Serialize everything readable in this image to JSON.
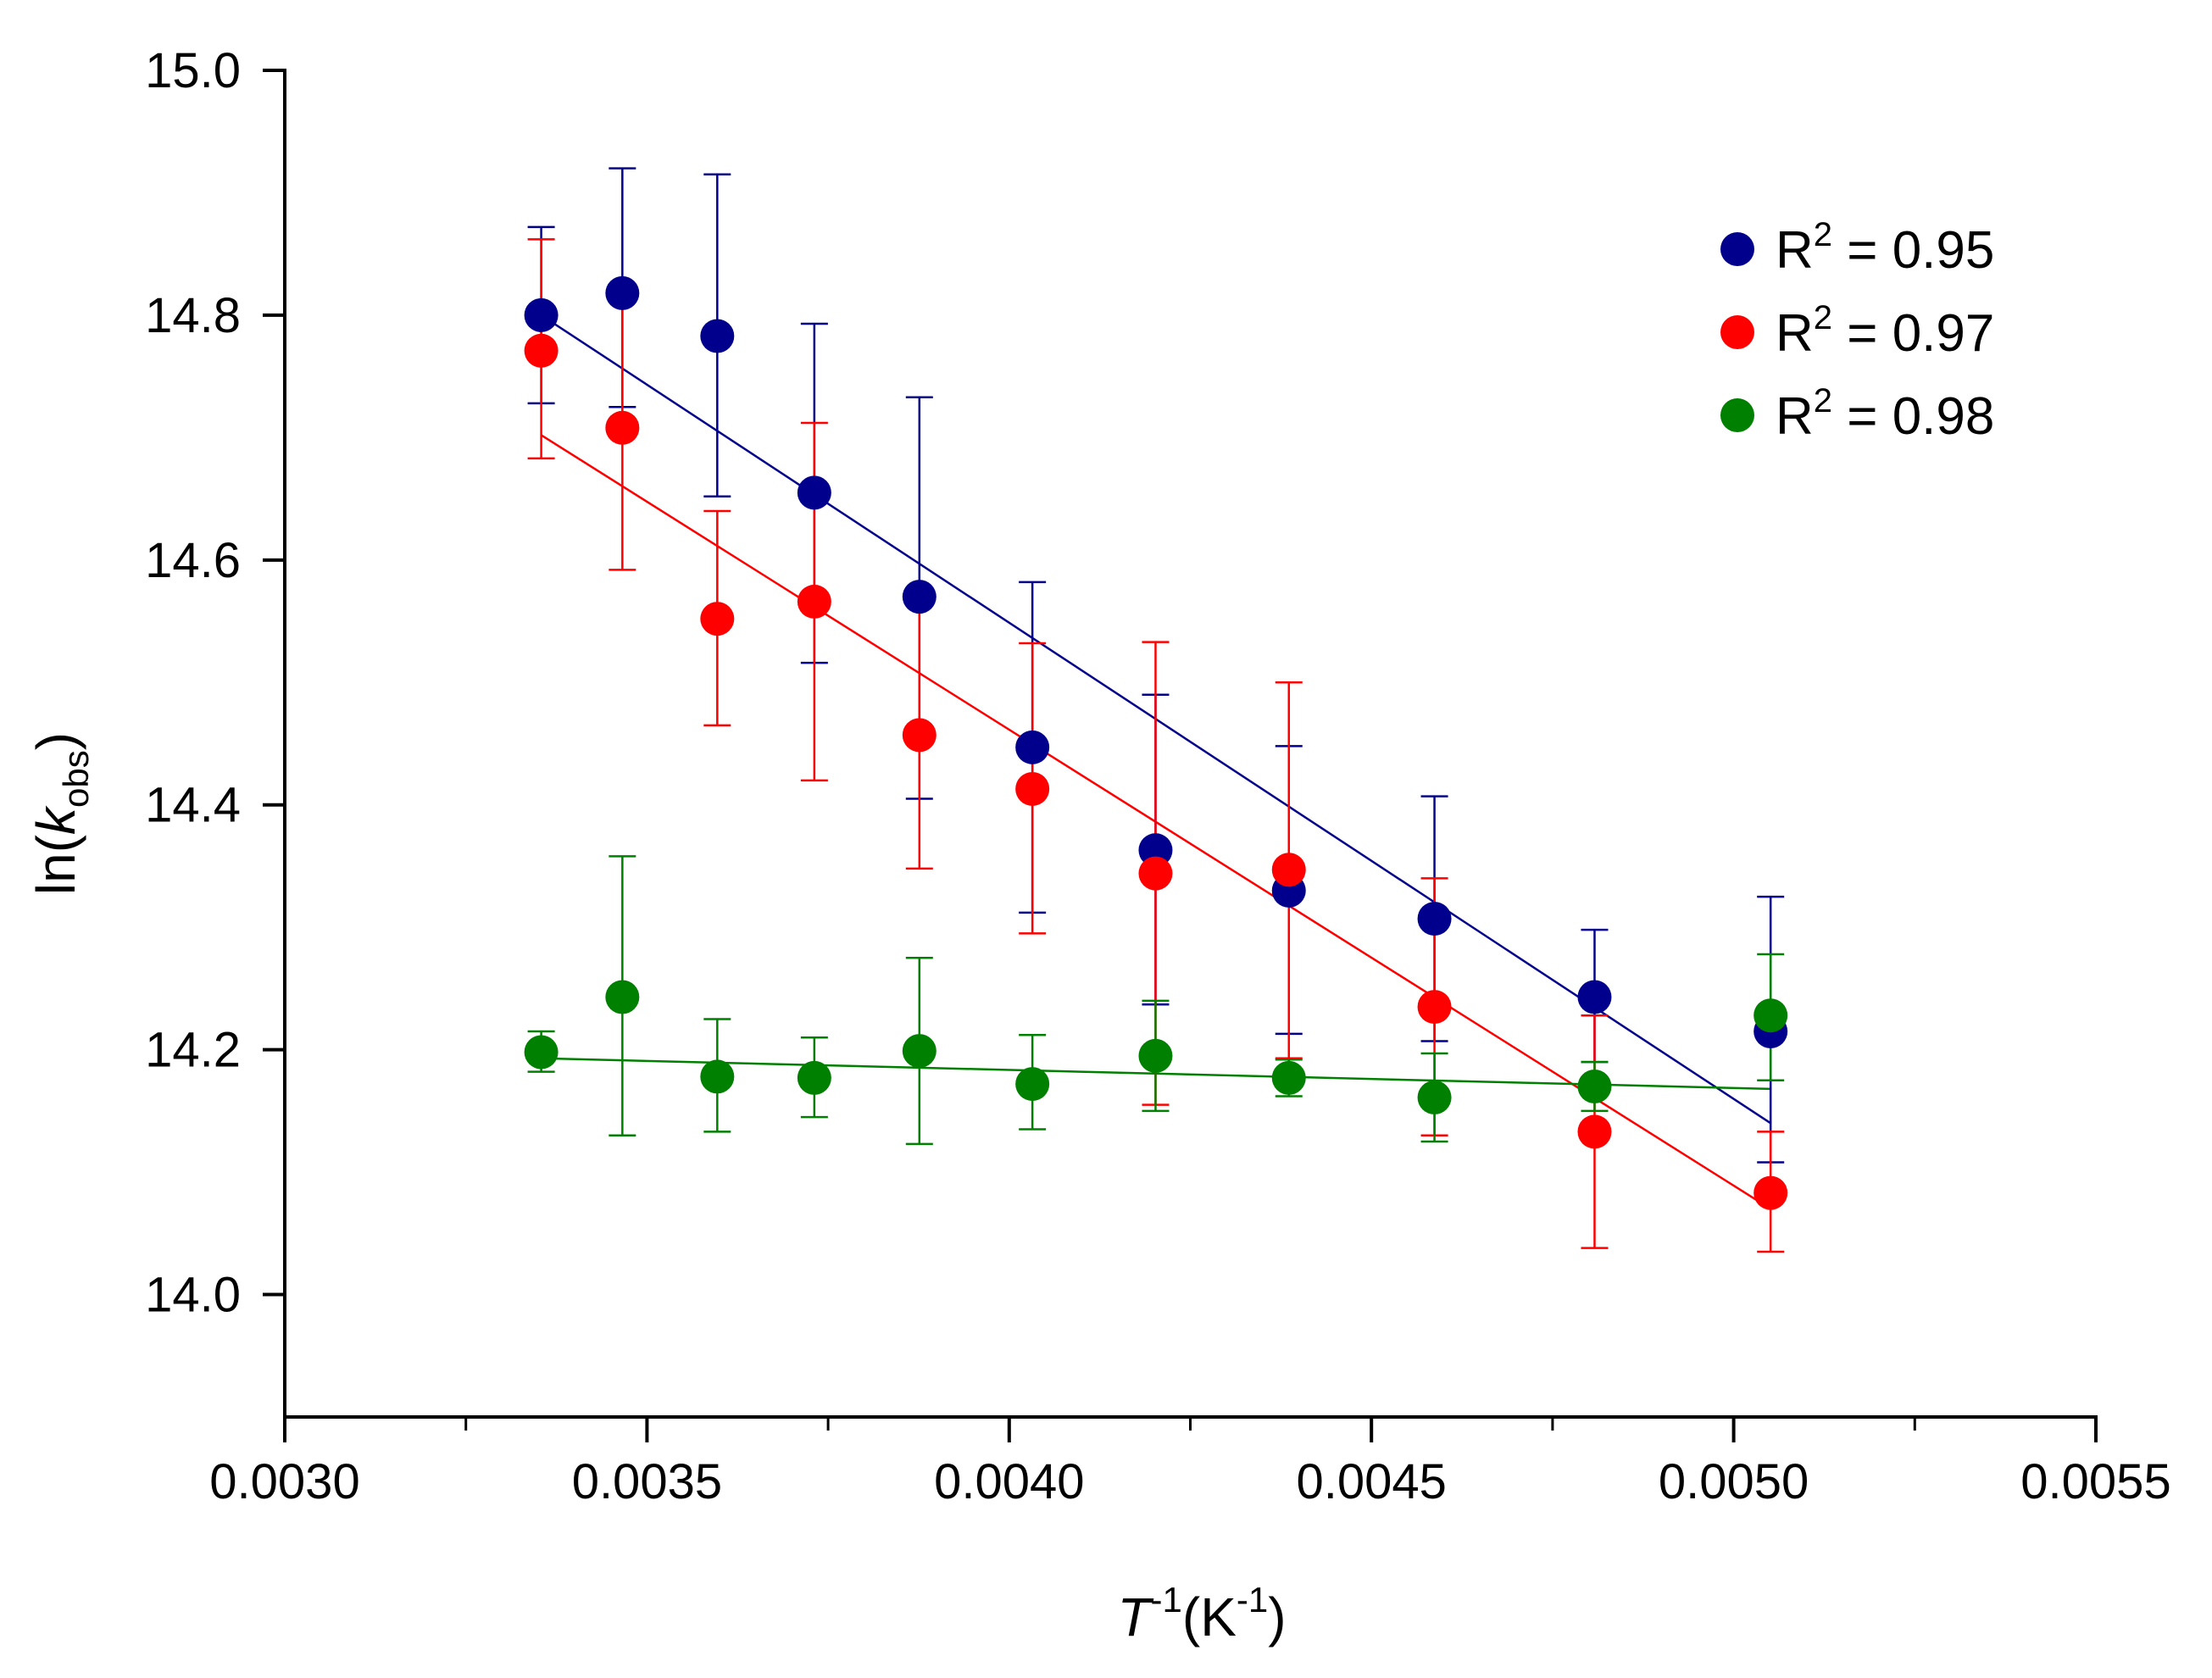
{
  "chart_data": {
    "type": "scatter",
    "title": "",
    "xlabel": {
      "symbol": "T",
      "symbol_sup": "-1",
      "unit_open": "(K",
      "unit_sup": "-1",
      "unit_close": ")"
    },
    "ylabel": {
      "prefix": "ln(",
      "symbol": "k",
      "subscript": "obs",
      "suffix": ")"
    },
    "xlim": [
      0.003,
      0.0055
    ],
    "ylim": [
      13.9,
      15.0
    ],
    "xticks": [
      0.003,
      0.0035,
      0.004,
      0.0045,
      0.005,
      0.0055
    ],
    "xtick_labels": [
      "0.0030",
      "0.0035",
      "0.0040",
      "0.0045",
      "0.0050",
      "0.0055"
    ],
    "yticks": [
      14.0,
      14.2,
      14.4,
      14.6,
      14.8,
      15.0
    ],
    "ytick_labels": [
      "14.0",
      "14.2",
      "14.4",
      "14.6",
      "14.8",
      "15.0"
    ],
    "grid": false,
    "legend_position": "top-right",
    "x": [
      0.003354,
      0.003466,
      0.003597,
      0.003731,
      0.003876,
      0.004032,
      0.004202,
      0.004386,
      0.004587,
      0.004808,
      0.005051
    ],
    "series": [
      {
        "name": "blue",
        "legend": {
          "base": "R",
          "sup": "2",
          "rest": " = 0.95"
        },
        "color": "#00008c",
        "values": [
          14.8,
          14.818,
          14.783,
          14.655,
          14.57,
          14.447,
          14.363,
          14.33,
          14.307,
          14.243,
          14.215
        ],
        "err_upper": [
          14.872,
          14.92,
          14.915,
          14.793,
          14.733,
          14.582,
          14.49,
          14.448,
          14.407,
          14.298,
          14.325
        ],
        "err_lower": [
          14.728,
          14.725,
          14.652,
          14.516,
          14.405,
          14.312,
          14.237,
          14.213,
          14.207,
          14.19,
          14.108
        ],
        "fit": {
          "x": [
            0.003354,
            0.005051
          ],
          "y": [
            14.8,
            14.14
          ]
        }
      },
      {
        "name": "red",
        "legend": {
          "base": "R",
          "sup": "2",
          "rest": " = 0.97"
        },
        "color": "#ff0000",
        "values": [
          14.771,
          14.708,
          14.552,
          14.566,
          14.457,
          14.413,
          14.344,
          14.347,
          14.235,
          14.133,
          14.083
        ],
        "err_upper": [
          14.862,
          14.825,
          14.64,
          14.712,
          14.567,
          14.532,
          14.533,
          14.5,
          14.34,
          14.228,
          14.133
        ],
        "err_lower": [
          14.683,
          14.592,
          14.465,
          14.42,
          14.348,
          14.295,
          14.155,
          14.193,
          14.13,
          14.038,
          14.035
        ],
        "fit": {
          "x": [
            0.003354,
            0.005051
          ],
          "y": [
            14.702,
            14.07
          ]
        }
      },
      {
        "name": "green",
        "legend": {
          "base": "R",
          "sup": "2",
          "rest": " = 0.98"
        },
        "color": "#008000",
        "values": [
          14.198,
          14.243,
          14.178,
          14.177,
          14.199,
          14.172,
          14.195,
          14.177,
          14.161,
          14.17,
          14.228
        ],
        "err_upper": [
          14.215,
          14.358,
          14.225,
          14.21,
          14.275,
          14.212,
          14.24,
          14.192,
          14.197,
          14.19,
          14.278
        ],
        "err_lower": [
          14.182,
          14.13,
          14.133,
          14.145,
          14.123,
          14.135,
          14.15,
          14.162,
          14.125,
          14.15,
          14.175
        ],
        "fit": {
          "x": [
            0.003354,
            0.005051
          ],
          "y": [
            14.193,
            14.168
          ]
        }
      }
    ]
  }
}
